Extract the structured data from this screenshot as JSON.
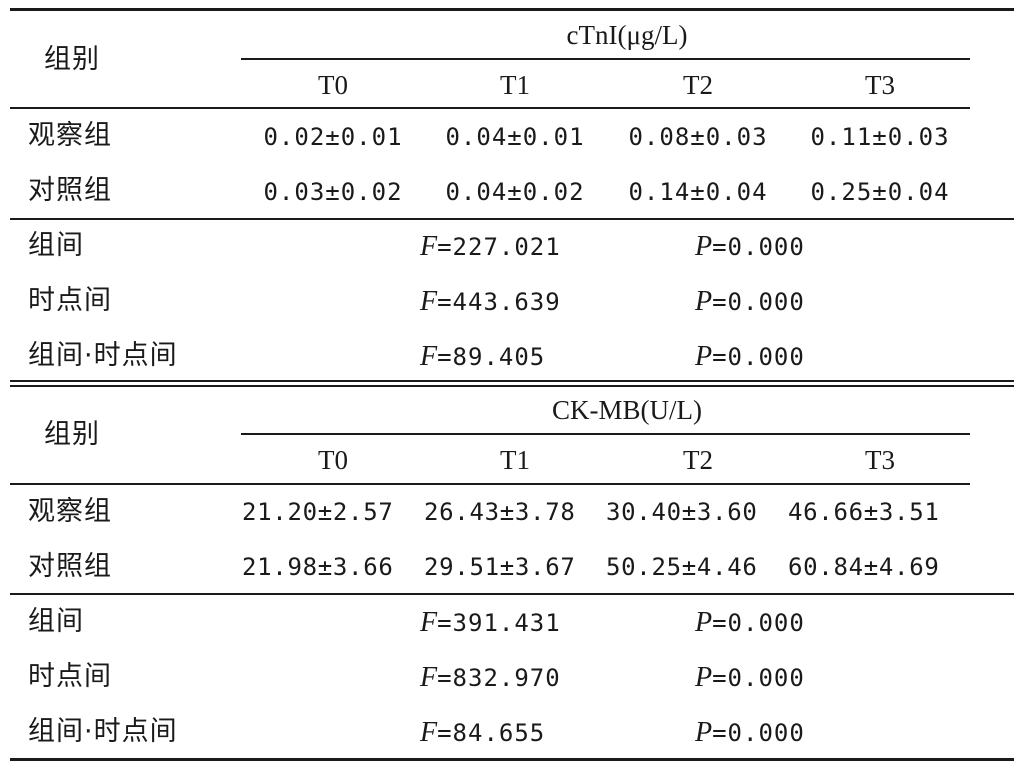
{
  "tables": [
    {
      "group_label": "组别",
      "measure": "cTnI(μg/L)",
      "timepoints": [
        "T0",
        "T1",
        "T2",
        "T3"
      ],
      "rows": [
        {
          "group": "观察组",
          "values": [
            "0.02±0.01",
            "0.04±0.01",
            "0.08±0.03",
            "0.11±0.03"
          ]
        },
        {
          "group": "对照组",
          "values": [
            "0.03±0.02",
            "0.04±0.02",
            "0.14±0.04",
            "0.25±0.04"
          ]
        }
      ],
      "stats": [
        {
          "label": "组间",
          "f_label": "F",
          "f_value": "=227.021",
          "p_label": "P",
          "p_value": "=0.000"
        },
        {
          "label": "时点间",
          "f_label": "F",
          "f_value": "=443.639",
          "p_label": "P",
          "p_value": "=0.000"
        },
        {
          "label": "组间·时点间",
          "f_label": "F",
          "f_value": "=89.405",
          "p_label": "P",
          "p_value": "=0.000"
        }
      ]
    },
    {
      "group_label": "组别",
      "measure": "CK-MB(U/L)",
      "timepoints": [
        "T0",
        "T1",
        "T2",
        "T3"
      ],
      "rows": [
        {
          "group": "观察组",
          "values": [
            "21.20±2.57",
            "26.43±3.78",
            "30.40±3.60",
            "46.66±3.51"
          ]
        },
        {
          "group": "对照组",
          "values": [
            "21.98±3.66",
            "29.51±3.67",
            "50.25±4.46",
            "60.84±4.69"
          ]
        }
      ],
      "stats": [
        {
          "label": "组间",
          "f_label": "F",
          "f_value": "=391.431",
          "p_label": "P",
          "p_value": "=0.000"
        },
        {
          "label": "时点间",
          "f_label": "F",
          "f_value": "=832.970",
          "p_label": "P",
          "p_value": "=0.000"
        },
        {
          "label": "组间·时点间",
          "f_label": "F",
          "f_value": "=84.655",
          "p_label": "P",
          "p_value": "=0.000"
        }
      ]
    }
  ]
}
